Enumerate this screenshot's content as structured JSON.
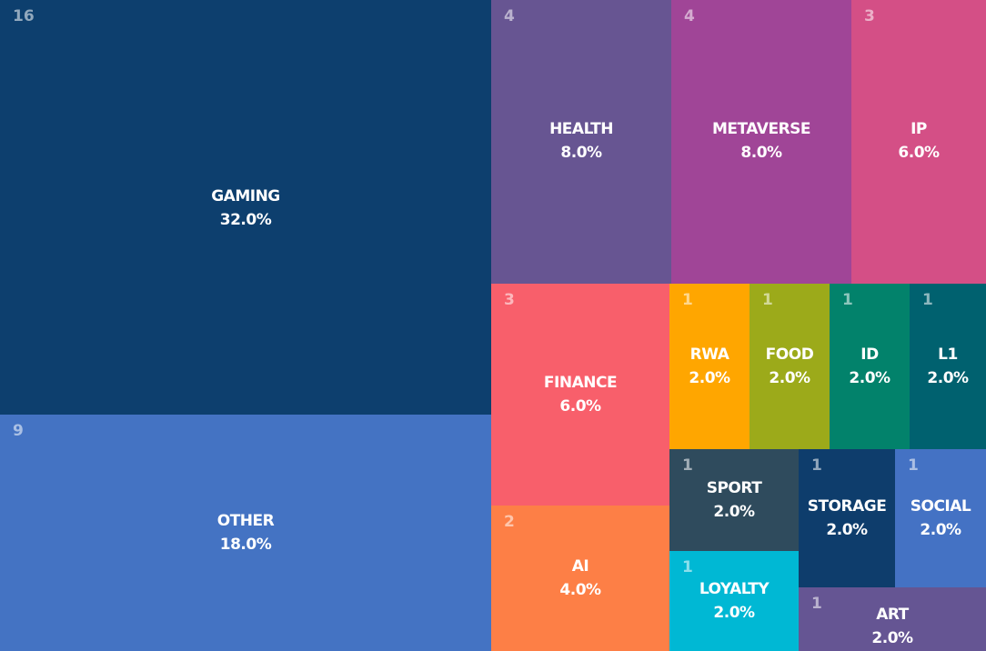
{
  "chart_data": {
    "type": "treemap",
    "items": [
      {
        "name": "GAMING",
        "count": 16,
        "pct": "32.0%",
        "color": "#0d3f6e"
      },
      {
        "name": "OTHER",
        "count": 9,
        "pct": "18.0%",
        "color": "#4473c3"
      },
      {
        "name": "HEALTH",
        "count": 4,
        "pct": "8.0%",
        "color": "#675592"
      },
      {
        "name": "METAVERSE",
        "count": 4,
        "pct": "8.0%",
        "color": "#a04597"
      },
      {
        "name": "IP",
        "count": 3,
        "pct": "6.0%",
        "color": "#d44f86"
      },
      {
        "name": "FINANCE",
        "count": 3,
        "pct": "6.0%",
        "color": "#f85f6b"
      },
      {
        "name": "AI",
        "count": 2,
        "pct": "4.0%",
        "color": "#fd7f46"
      },
      {
        "name": "RWA",
        "count": 1,
        "pct": "2.0%",
        "color": "#ffa600"
      },
      {
        "name": "FOOD",
        "count": 1,
        "pct": "2.0%",
        "color": "#9caa1a"
      },
      {
        "name": "ID",
        "count": 1,
        "pct": "2.0%",
        "color": "#02826b"
      },
      {
        "name": "L1",
        "count": 1,
        "pct": "2.0%",
        "color": "#00616f"
      },
      {
        "name": "SPORT",
        "count": 1,
        "pct": "2.0%",
        "color": "#2f4b5d"
      },
      {
        "name": "STORAGE",
        "count": 1,
        "pct": "2.0%",
        "color": "#0e3d6c"
      },
      {
        "name": "SOCIAL",
        "count": 1,
        "pct": "2.0%",
        "color": "#4472c4"
      },
      {
        "name": "LOYALTY",
        "count": 1,
        "pct": "2.0%",
        "color": "#00b8d4"
      },
      {
        "name": "ART",
        "count": 1,
        "pct": "2.0%",
        "color": "#655593"
      }
    ]
  }
}
